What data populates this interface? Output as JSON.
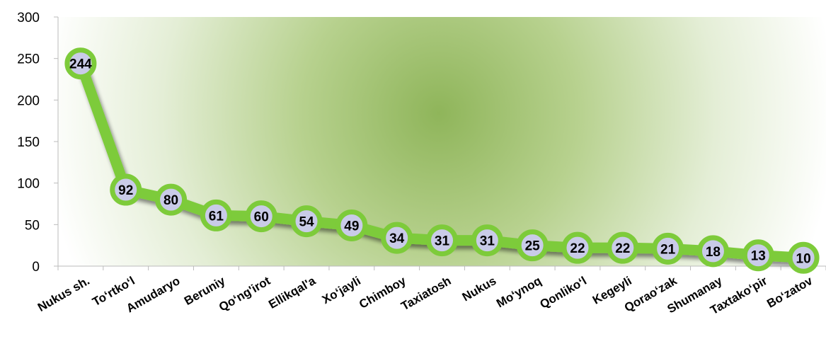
{
  "chart_data": {
    "type": "line",
    "title": "",
    "xlabel": "",
    "ylabel": "",
    "categories": [
      "Nukus sh.",
      "To‘rtko‘l",
      "Amudaryo",
      "Beruniy",
      "Qo‘ng'irot",
      "Ellikqal'a",
      "Xo‘jayli",
      "Chimboy",
      "Taxiatosh",
      "Nukus",
      "Mo‘ynoq",
      "Qonliko‘l",
      "Kegeyli",
      "Qorao‘zak",
      "Shumanay",
      "Taxtako‘pir",
      "Bo‘zatov"
    ],
    "series": [
      {
        "values": [
          244,
          92,
          80,
          61,
          60,
          54,
          49,
          34,
          31,
          31,
          25,
          22,
          22,
          21,
          18,
          13,
          10
        ],
        "color": "#7dcb3a",
        "marker_fill": "#c9cbe8"
      }
    ],
    "ylim": [
      0,
      300
    ],
    "yticks": [
      0,
      50,
      100,
      150,
      200,
      250,
      300
    ],
    "grid": false,
    "legend": "none",
    "data_labels": true
  }
}
